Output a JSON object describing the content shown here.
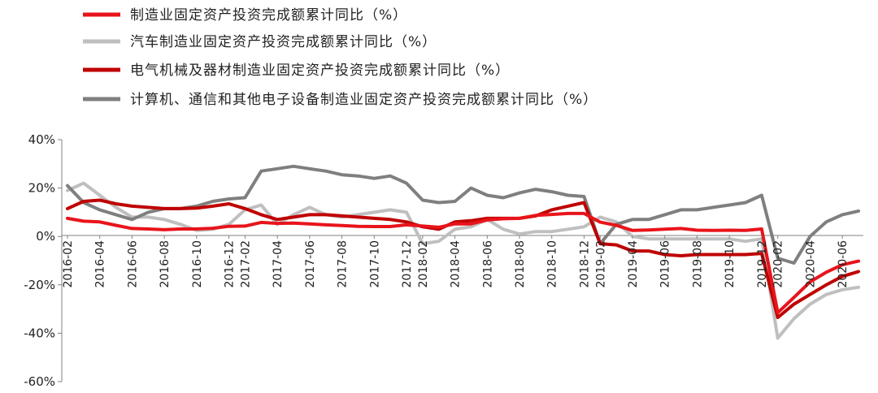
{
  "chart_data": {
    "type": "line",
    "title": "",
    "xlabel": "",
    "ylabel": "",
    "ylim": [
      -60,
      40
    ],
    "yticks": [
      40,
      20,
      0,
      -20,
      -40,
      -60
    ],
    "ytick_labels": [
      "40%",
      "20%",
      "0%",
      "-20%",
      "-40%",
      "-60%"
    ],
    "grid": false,
    "legend": "top-left",
    "x": [
      "2016-02",
      "2016-03",
      "2016-04",
      "2016-05",
      "2016-06",
      "2016-07",
      "2016-08",
      "2016-09",
      "2016-10",
      "2016-11",
      "2016-12",
      "2017-02",
      "2017-03",
      "2017-04",
      "2017-05",
      "2017-06",
      "2017-07",
      "2017-08",
      "2017-09",
      "2017-10",
      "2017-11",
      "2017-12",
      "2018-02",
      "2018-03",
      "2018-04",
      "2018-05",
      "2018-06",
      "2018-07",
      "2018-08",
      "2018-09",
      "2018-10",
      "2018-11",
      "2018-12",
      "2019-02",
      "2019-03",
      "2019-04",
      "2019-05",
      "2019-06",
      "2019-07",
      "2019-08",
      "2019-09",
      "2019-10",
      "2019-11",
      "2019-12",
      "2020-02",
      "2020-03",
      "2020-04",
      "2020-05",
      "2020-06",
      "2020-07"
    ],
    "xtick_labels": [
      "2016-02",
      "2016-04",
      "2016-06",
      "2016-08",
      "2016-10",
      "2016-12",
      "2017-02",
      "2017-04",
      "2017-06",
      "2017-08",
      "2017-10",
      "2017-12",
      "2018-02",
      "2018-04",
      "2018-06",
      "2018-08",
      "2018-10",
      "2018-12",
      "2019-02",
      "2019-04",
      "2019-06",
      "2019-08",
      "2019-10",
      "2019-12",
      "2020-02",
      "2020-04",
      "2020-06"
    ],
    "series": [
      {
        "name": "制造业固定资产投资完成额累计同比（%）",
        "color": "#e8141b",
        "values": [
          7.5,
          6.3,
          6.0,
          4.6,
          3.3,
          3.1,
          2.8,
          3.1,
          3.1,
          3.4,
          4.2,
          4.3,
          5.8,
          5.4,
          5.5,
          5.2,
          4.8,
          4.5,
          4.2,
          4.1,
          4.1,
          4.8,
          4.3,
          3.8,
          5.2,
          5.2,
          6.8,
          7.3,
          7.5,
          8.7,
          9.1,
          9.5,
          9.5,
          5.9,
          4.6,
          2.5,
          2.7,
          3.0,
          3.3,
          2.6,
          2.5,
          2.6,
          2.5,
          3.1,
          -31.5,
          -25.2,
          -18.8,
          -14.8,
          -11.7,
          -10.2
        ]
      },
      {
        "name": "汽车制造业固定资产投资完成额累计同比（%）",
        "color": "#bfbfbf",
        "values": [
          19,
          22,
          17,
          12,
          8,
          8,
          7,
          5,
          2.5,
          3,
          5,
          11,
          13,
          5,
          9,
          12,
          9,
          8,
          9,
          10,
          11,
          10,
          -3,
          -2,
          3,
          4,
          7,
          3,
          1,
          2,
          2,
          3,
          4,
          8,
          6,
          0,
          -1,
          -1,
          -1,
          -1,
          -1,
          -1,
          -2,
          -1,
          -42,
          -34,
          -28,
          -24,
          -22,
          -21
        ]
      },
      {
        "name": "电气机械及器材制造业固定资产投资完成额累计同比（%）",
        "color": "#c00000",
        "values": [
          11.5,
          14.5,
          15,
          13.5,
          12.5,
          12,
          11.5,
          11.5,
          11.7,
          12.5,
          13.5,
          11.5,
          9,
          7,
          8,
          9,
          9,
          8.5,
          8,
          7.5,
          7,
          6,
          4,
          3,
          6,
          6.5,
          7.5,
          7.5,
          7.5,
          8.5,
          11,
          12.5,
          14,
          -3,
          -3.5,
          -6,
          -6,
          -7.5,
          -8,
          -7.5,
          -7.5,
          -7.5,
          -7.5,
          -7,
          -33.5,
          -28,
          -24,
          -20,
          -16.5,
          -14.5
        ]
      },
      {
        "name": "计算机、通信和其他电子设备制造业固定资产投资完成额累计同比（%）",
        "color": "#7f7f7f",
        "values": [
          21,
          14,
          11,
          9,
          7,
          10,
          11.5,
          11.5,
          12.5,
          14.5,
          15.5,
          16,
          27,
          28,
          29,
          28,
          27,
          25.5,
          25,
          24,
          25,
          22,
          15,
          14,
          14.5,
          20,
          17,
          16,
          18,
          19.5,
          18.5,
          17,
          16.5,
          -3,
          5,
          7,
          7,
          9,
          11,
          11,
          12,
          13,
          14,
          17,
          -9,
          -11,
          0,
          6,
          9,
          10.5
        ]
      }
    ]
  }
}
